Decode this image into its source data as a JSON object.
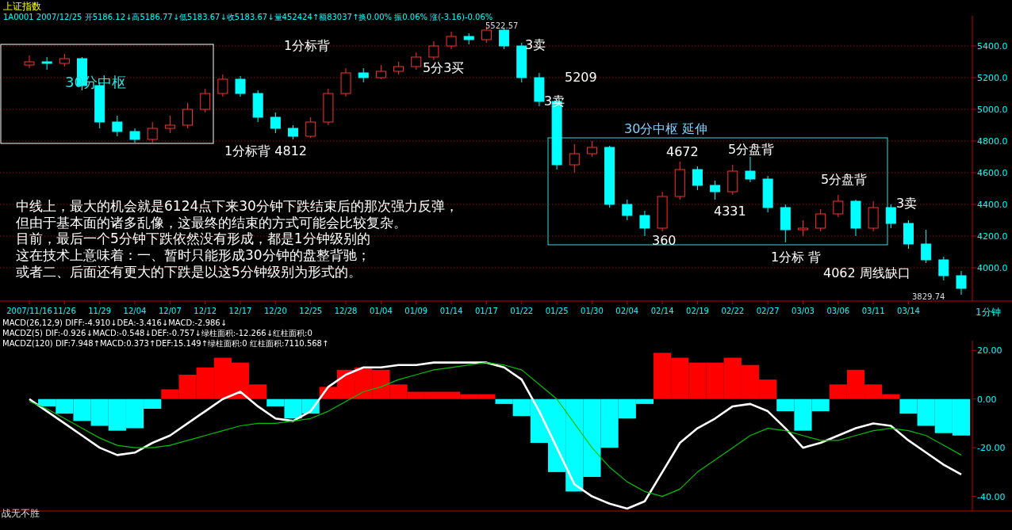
{
  "chart_data": [
    {
      "type": "candlestick",
      "title": "上证指数",
      "subtitle": "1A0001 2007/12/25 开5186.12↓高5186.77↓低5183.67↓收5183.67↓量452424↑额83037↑换0.00% 振0.06% 涨(-3.16)-0.06%",
      "categories": [
        "2007/11/16",
        null,
        "11/26",
        null,
        "11/29",
        null,
        "12/04",
        null,
        "12/07",
        null,
        "12/12",
        null,
        "12/17",
        null,
        "12/20",
        null,
        "12/25",
        null,
        "12/28",
        null,
        "01/04",
        null,
        "01/09",
        null,
        "01/14",
        null,
        "01/17",
        null,
        "01/22",
        null,
        "01/25",
        null,
        "01/30",
        null,
        "02/04",
        null,
        "02/14",
        null,
        "02/19",
        null,
        "02/22",
        null,
        "02/27",
        null,
        "03/03",
        null,
        "03/06",
        null,
        "03/11",
        null,
        "03/14",
        null,
        null,
        null
      ],
      "ohlc": [
        [
          5280,
          5340,
          5260,
          5300
        ],
        [
          5300,
          5330,
          5250,
          5290
        ],
        [
          5290,
          5350,
          5270,
          5320
        ],
        [
          5320,
          5330,
          5120,
          5150
        ],
        [
          5150,
          5170,
          4880,
          4920
        ],
        [
          4920,
          4960,
          4830,
          4860
        ],
        [
          4860,
          4880,
          4790,
          4810
        ],
        [
          4810,
          4920,
          4790,
          4880
        ],
        [
          4880,
          4960,
          4850,
          4900
        ],
        [
          4900,
          5040,
          4880,
          5000
        ],
        [
          5000,
          5130,
          4980,
          5100
        ],
        [
          5100,
          5220,
          5080,
          5190
        ],
        [
          5190,
          5210,
          5080,
          5100
        ],
        [
          5100,
          5120,
          4920,
          4950
        ],
        [
          4950,
          4980,
          4850,
          4880
        ],
        [
          4880,
          4900,
          4810,
          4830
        ],
        [
          4830,
          4950,
          4820,
          4920
        ],
        [
          4920,
          5130,
          4900,
          5100
        ],
        [
          5100,
          5260,
          5080,
          5230
        ],
        [
          5230,
          5260,
          5170,
          5200
        ],
        [
          5200,
          5280,
          5190,
          5240
        ],
        [
          5240,
          5300,
          5220,
          5270
        ],
        [
          5270,
          5360,
          5250,
          5330
        ],
        [
          5330,
          5430,
          5310,
          5400
        ],
        [
          5400,
          5490,
          5380,
          5460
        ],
        [
          5460,
          5480,
          5410,
          5440
        ],
        [
          5440,
          5522.57,
          5420,
          5500
        ],
        [
          5500,
          5510,
          5380,
          5400
        ],
        [
          5400,
          5420,
          5170,
          5200
        ],
        [
          5200,
          5230,
          5020,
          5050
        ],
        [
          5050,
          5060,
          4620,
          4650
        ],
        [
          4650,
          4780,
          4600,
          4720
        ],
        [
          4720,
          4800,
          4700,
          4760
        ],
        [
          4760,
          4770,
          4380,
          4400
        ],
        [
          4400,
          4430,
          4300,
          4330
        ],
        [
          4330,
          4360,
          4200,
          4250
        ],
        [
          4250,
          4480,
          4230,
          4450
        ],
        [
          4450,
          4670,
          4430,
          4620
        ],
        [
          4620,
          4640,
          4490,
          4520
        ],
        [
          4520,
          4550,
          4430,
          4480
        ],
        [
          4480,
          4650,
          4460,
          4610
        ],
        [
          4610,
          4700,
          4540,
          4560
        ],
        [
          4560,
          4580,
          4350,
          4380
        ],
        [
          4380,
          4400,
          4160,
          4240
        ],
        [
          4240,
          4300,
          4200,
          4250
        ],
        [
          4250,
          4370,
          4230,
          4340
        ],
        [
          4340,
          4460,
          4320,
          4420
        ],
        [
          4420,
          4430,
          4200,
          4250
        ],
        [
          4250,
          4420,
          4230,
          4380
        ],
        [
          4380,
          4400,
          4250,
          4280
        ],
        [
          4280,
          4300,
          4120,
          4150
        ],
        [
          4150,
          4240,
          4030,
          4050
        ],
        [
          4050,
          4070,
          3920,
          3950
        ],
        [
          3950,
          3980,
          3829.74,
          3870
        ]
      ],
      "ylim": [
        3790,
        5590
      ],
      "yticks": [
        {
          "value": 4000,
          "label": "4000.0"
        },
        {
          "value": 4200,
          "label": "4200.0"
        },
        {
          "value": 4400,
          "label": "4400.0"
        },
        {
          "value": 4600,
          "label": "4600.0"
        },
        {
          "value": 4800,
          "label": "4800.0"
        },
        {
          "value": 5000,
          "label": "5000.0"
        },
        {
          "value": 5200,
          "label": "5200.0"
        },
        {
          "value": 5400,
          "label": "5400.0"
        }
      ],
      "grid": "y",
      "annotations": [
        "5522.57",
        "30分中枢",
        "1分标背",
        "5分3买",
        "3卖",
        "5209",
        "3卖",
        "1分标背  4812",
        "30分中枢 延伸",
        "4672",
        "5分盘背",
        "5分盘背",
        "4331",
        "360",
        "1分标  背",
        "4062  周线缺口",
        "3卖",
        "3829.74",
        "中线上，最大的机会就是6124点下来30分钟下跌结束后的那次强力反弹，",
        "但由于基本面的诸多乱像，这最终的结束的方式可能会比较复杂。",
        "目前，最后一个5分钟下跌依然没有形成，都是1分钟级别的",
        "这在技术上意味着：一、暂时只能形成30分钟的盘整背驰；",
        "或者二、后面还有更大的下跌是以这5分钟级别为形式的。",
        "1分钟"
      ]
    },
    {
      "type": "bar",
      "categories": [
        null,
        null,
        null,
        null,
        null,
        null,
        null,
        null,
        null,
        null,
        null,
        null,
        null,
        null,
        null,
        null,
        null,
        null,
        null,
        null,
        null,
        null,
        null,
        null,
        null,
        null,
        null,
        null,
        null,
        null,
        null,
        null,
        null,
        null,
        null,
        null,
        null,
        null,
        null,
        null,
        null,
        null,
        null,
        null,
        null,
        null,
        null,
        null,
        null,
        null,
        null,
        null,
        null,
        null
      ],
      "series": [
        {
          "type": "bar",
          "values": [
            0,
            -3,
            -6,
            -9,
            -11,
            -13,
            -12,
            -4,
            4,
            10,
            13,
            17,
            15,
            6,
            -3,
            -8,
            -6,
            5,
            12,
            13,
            12,
            6,
            3,
            3,
            3,
            2,
            2,
            -2,
            -7,
            -18,
            -30,
            -38,
            -32,
            -20,
            -8,
            -2,
            19,
            17,
            15,
            15,
            17,
            14,
            8,
            -5,
            -13,
            -5,
            6,
            12,
            6,
            2,
            -6,
            -11,
            -14,
            -15
          ],
          "colors": [
            "#00ffff",
            "#00ffff",
            "#00ffff",
            "#00ffff",
            "#00ffff",
            "#00ffff",
            "#00ffff",
            "#00ffff",
            "#ff0000",
            "#ff0000",
            "#ff0000",
            "#ff0000",
            "#ff0000",
            "#ff0000",
            "#00ffff",
            "#00ffff",
            "#00ffff",
            "#ff0000",
            "#ff0000",
            "#ff0000",
            "#ff0000",
            "#ff0000",
            "#ff0000",
            "#ff0000",
            "#ff0000",
            "#ff0000",
            "#ff0000",
            "#00ffff",
            "#00ffff",
            "#00ffff",
            "#00ffff",
            "#00ffff",
            "#00ffff",
            "#00ffff",
            "#00ffff",
            "#00ffff",
            "#ff0000",
            "#ff0000",
            "#ff0000",
            "#ff0000",
            "#ff0000",
            "#ff0000",
            "#ff0000",
            "#00ffff",
            "#00ffff",
            "#00ffff",
            "#ff0000",
            "#ff0000",
            "#ff0000",
            "#ff0000",
            "#00ffff",
            "#00ffff",
            "#00ffff",
            "#00ffff"
          ]
        },
        {
          "type": "line",
          "color": "#ffffff",
          "values": [
            0,
            -5,
            -10,
            -15,
            -20,
            -23,
            -22,
            -18,
            -15,
            -10,
            -5,
            0,
            3,
            -3,
            -8,
            -9,
            -5,
            5,
            10,
            13,
            13,
            14,
            14,
            15,
            15,
            15,
            15,
            13,
            8,
            -5,
            -20,
            -35,
            -40,
            -43,
            -45,
            -42,
            -30,
            -18,
            -12,
            -8,
            -3,
            -2,
            -5,
            -12,
            -20,
            -18,
            -15,
            -12,
            -10,
            -11,
            -17,
            -22,
            -27,
            -31
          ]
        },
        {
          "type": "line",
          "color": "#00c000",
          "values": [
            -1,
            -4,
            -8,
            -12,
            -16,
            -19,
            -20,
            -20,
            -19,
            -17,
            -15,
            -13,
            -11,
            -10,
            -10,
            -9,
            -8,
            -5,
            -1,
            3,
            5,
            8,
            10,
            12,
            13,
            14,
            15,
            14,
            12,
            6,
            0,
            -10,
            -20,
            -28,
            -34,
            -38,
            -40,
            -37,
            -30,
            -25,
            -20,
            -15,
            -12,
            -13,
            -15,
            -17,
            -17,
            -15,
            -13,
            -12,
            -13,
            -15,
            -19,
            -23
          ]
        }
      ],
      "ylim": [
        -46,
        24
      ],
      "yticks": [
        {
          "value": -40,
          "label": "-40.00"
        },
        {
          "value": -20,
          "label": "-20.00"
        },
        {
          "value": 0,
          "label": "0.00"
        },
        {
          "value": 20,
          "label": "20.00"
        }
      ],
      "tick_labels": "y",
      "annotations": [
        "MACD(26,12,9) DIFF:-4.910↓DEA:-3.416↓MACD:-2.986↓",
        "MACDZ(5) DIF:-0.926↓MACD:-0.548↓DEF:-0.757↓绿柱面积:-12.266↓红柱面积:0",
        "MACDZ(120) DIF:7.948↑MACD:0.373↑DEF:15.149↑绿柱面积:0 红柱面积:7110.568↑",
        "战无不胜"
      ]
    }
  ]
}
